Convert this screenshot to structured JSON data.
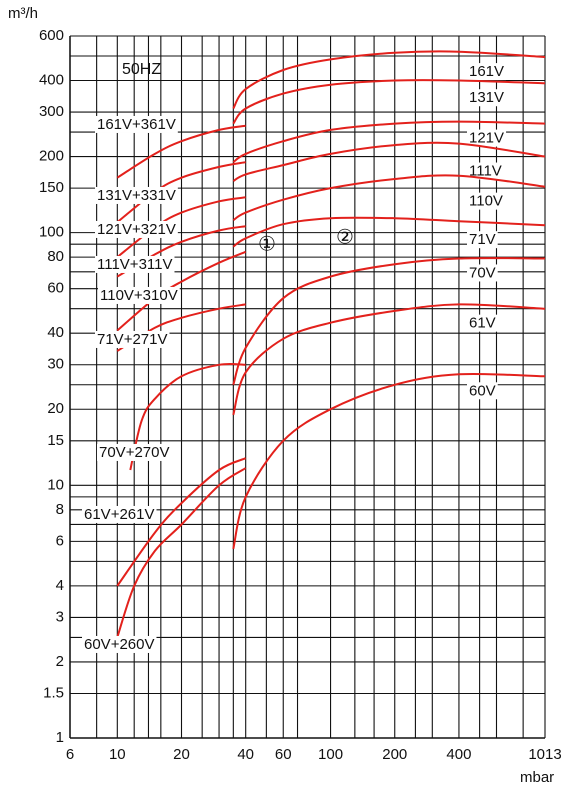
{
  "chart_data": {
    "type": "line",
    "y_label": "m³/h",
    "x_label": "mbar",
    "annotations": [
      "50HZ",
      "①",
      "②"
    ],
    "log_x": true,
    "log_y": true,
    "xlim": [
      6,
      1013
    ],
    "ylim": [
      1,
      600
    ],
    "xticks": [
      6,
      10,
      20,
      40,
      60,
      100,
      200,
      400,
      1013
    ],
    "yticks": [
      1,
      1.5,
      2,
      3,
      4,
      6,
      8,
      10,
      15,
      20,
      30,
      40,
      60,
      80,
      100,
      150,
      200,
      300,
      400,
      600
    ],
    "xgrid": [
      6,
      8,
      10,
      12,
      14,
      16,
      20,
      25,
      30,
      35,
      40,
      50,
      60,
      70,
      100,
      130,
      160,
      200,
      250,
      300,
      400,
      500,
      600,
      800,
      1013
    ],
    "ygrid": [
      1,
      1.5,
      2,
      2.5,
      3,
      4,
      5,
      6,
      7,
      8,
      9,
      10,
      15,
      20,
      25,
      30,
      40,
      50,
      60,
      70,
      80,
      90,
      100,
      150,
      200,
      250,
      300,
      400,
      500,
      600
    ],
    "grid": true,
    "color": "#e3211c",
    "series": [
      {
        "name": "161V",
        "x": [
          35,
          40,
          60,
          100,
          200,
          400,
          1013
        ],
        "values": [
          310,
          370,
          440,
          485,
          515,
          520,
          495
        ]
      },
      {
        "name": "131V",
        "x": [
          35,
          40,
          60,
          100,
          200,
          400,
          1013
        ],
        "values": [
          270,
          310,
          355,
          385,
          400,
          400,
          390
        ]
      },
      {
        "name": "121V",
        "x": [
          35,
          40,
          60,
          100,
          200,
          400,
          1013
        ],
        "values": [
          190,
          205,
          230,
          255,
          270,
          275,
          270
        ]
      },
      {
        "name": "111V",
        "x": [
          35,
          40,
          60,
          100,
          200,
          400,
          1013
        ],
        "values": [
          160,
          170,
          185,
          205,
          222,
          225,
          200
        ]
      },
      {
        "name": "110V",
        "x": [
          35,
          40,
          60,
          100,
          200,
          400,
          1013
        ],
        "values": [
          112,
          120,
          135,
          150,
          163,
          168,
          152
        ]
      },
      {
        "name": "71V",
        "x": [
          35,
          40,
          60,
          100,
          200,
          400,
          1013
        ],
        "values": [
          88,
          95,
          108,
          114,
          114,
          111,
          107
        ]
      },
      {
        "name": "70V",
        "x": [
          35,
          40,
          60,
          100,
          200,
          400,
          1013
        ],
        "values": [
          25,
          35,
          55,
          67,
          75,
          79,
          79
        ]
      },
      {
        "name": "61V",
        "x": [
          35,
          40,
          60,
          100,
          200,
          400,
          1013
        ],
        "values": [
          19,
          28,
          38,
          44,
          49,
          52,
          50
        ]
      },
      {
        "name": "60V",
        "x": [
          35,
          40,
          60,
          100,
          200,
          400,
          1013
        ],
        "values": [
          5.6,
          9,
          15,
          20,
          25,
          27.5,
          27
        ]
      },
      {
        "name": "161V+361V",
        "x": [
          10,
          15,
          20,
          30,
          40
        ],
        "values": [
          165,
          205,
          230,
          255,
          265
        ]
      },
      {
        "name": "131V+331V",
        "x": [
          10,
          15,
          20,
          30,
          40
        ],
        "values": [
          110,
          145,
          165,
          182,
          190
        ]
      },
      {
        "name": "121V+321V",
        "x": [
          10,
          15,
          20,
          30,
          40
        ],
        "values": [
          80,
          105,
          120,
          133,
          138
        ]
      },
      {
        "name": "111V+311V",
        "x": [
          10,
          15,
          20,
          30,
          40
        ],
        "values": [
          67,
          82,
          92,
          102,
          106
        ]
      },
      {
        "name": "110V+310V",
        "x": [
          10,
          15,
          20,
          30,
          40
        ],
        "values": [
          41,
          55,
          64,
          76,
          84
        ]
      },
      {
        "name": "71V+271V",
        "x": [
          10,
          15,
          20,
          30,
          40
        ],
        "values": [
          34,
          42,
          46,
          50,
          52
        ]
      },
      {
        "name": "70V+270V",
        "x": [
          11.5,
          13,
          15,
          20,
          30,
          40
        ],
        "values": [
          11.5,
          18,
          22,
          27,
          30,
          30
        ]
      },
      {
        "name": "61V+261V",
        "x": [
          10,
          15,
          20,
          30,
          40
        ],
        "values": [
          4,
          6.5,
          8.5,
          11.5,
          12.8
        ]
      },
      {
        "name": "60V+260V",
        "x": [
          10,
          12,
          15,
          20,
          30,
          40
        ],
        "values": [
          2.5,
          4,
          5.5,
          7,
          10,
          11.7
        ]
      }
    ]
  }
}
